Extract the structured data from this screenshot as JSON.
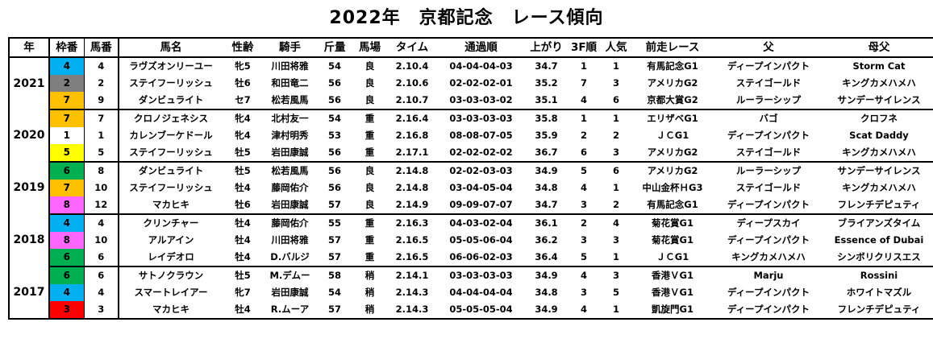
{
  "title": "2022年　京都記念　レース傾向",
  "headers": [
    "年",
    "枠番",
    "馬番",
    "馬名",
    "性齢",
    "騎手",
    "斤量",
    "馬場",
    "タイム",
    "通過順",
    "上がり",
    "3F順",
    "人気",
    "前走レース",
    "父",
    "母父"
  ],
  "waku_colors": {
    "1": "#ffffff",
    "2": "#7f7f7f",
    "3": "#ff0000",
    "4": "#00b0f0",
    "5": "#ffff00",
    "6": "#00b050",
    "7": "#ffc000",
    "8": "#ff66ff"
  },
  "groups": [
    {
      "year": "2021",
      "rows": [
        {
          "waku": "4",
          "umaban": "4",
          "horse": "ラヴズオンリーユー",
          "sexage": "牝5",
          "jockey": "川田将雅",
          "weight": "54",
          "track": "良",
          "time": "2.10.4",
          "passing": "04-04-04-03",
          "agari": "34.7",
          "f3": "1",
          "pop": "1",
          "prev": "有馬記念G1",
          "sire": "ディープインパクト",
          "damsire": "Storm Cat"
        },
        {
          "waku": "2",
          "umaban": "2",
          "horse": "ステイフーリッシュ",
          "sexage": "牡6",
          "jockey": "和田竜二",
          "weight": "56",
          "track": "良",
          "time": "2.10.6",
          "passing": "02-02-02-01",
          "agari": "35.2",
          "f3": "7",
          "pop": "3",
          "prev": "アメリカG2",
          "sire": "ステイゴールド",
          "damsire": "キングカメハメハ"
        },
        {
          "waku": "7",
          "umaban": "9",
          "horse": "ダンビュライト",
          "sexage": "セ7",
          "jockey": "松若風馬",
          "weight": "56",
          "track": "良",
          "time": "2.10.7",
          "passing": "03-03-03-02",
          "agari": "35.1",
          "f3": "4",
          "pop": "6",
          "prev": "京都大賞G2",
          "sire": "ルーラーシップ",
          "damsire": "サンデーサイレンス"
        }
      ]
    },
    {
      "year": "2020",
      "rows": [
        {
          "waku": "7",
          "umaban": "7",
          "horse": "クロノジェネシス",
          "sexage": "牝4",
          "jockey": "北村友一",
          "weight": "54",
          "track": "重",
          "time": "2.16.4",
          "passing": "03-03-03-03",
          "agari": "35.8",
          "f3": "1",
          "pop": "1",
          "prev": "エリザベG1",
          "sire": "バゴ",
          "damsire": "クロフネ"
        },
        {
          "waku": "1",
          "umaban": "1",
          "horse": "カレンブーケドール",
          "sexage": "牝4",
          "jockey": "津村明秀",
          "weight": "53",
          "track": "重",
          "time": "2.16.8",
          "passing": "08-08-07-05",
          "agari": "35.9",
          "f3": "2",
          "pop": "2",
          "prev": "ＪＣG1",
          "sire": "ディープインパクト",
          "damsire": "Scat Daddy"
        },
        {
          "waku": "5",
          "umaban": "5",
          "horse": "ステイフーリッシュ",
          "sexage": "牡5",
          "jockey": "岩田康誠",
          "weight": "56",
          "track": "重",
          "time": "2.17.1",
          "passing": "02-02-02-02",
          "agari": "36.7",
          "f3": "6",
          "pop": "3",
          "prev": "アメリカG2",
          "sire": "ステイゴールド",
          "damsire": "キングカメハメハ"
        }
      ]
    },
    {
      "year": "2019",
      "rows": [
        {
          "waku": "6",
          "umaban": "8",
          "horse": "ダンビュライト",
          "sexage": "牡5",
          "jockey": "松若風馬",
          "weight": "56",
          "track": "良",
          "time": "2.14.8",
          "passing": "02-02-03-03",
          "agari": "34.9",
          "f3": "5",
          "pop": "6",
          "prev": "アメリカG2",
          "sire": "ルーラーシップ",
          "damsire": "サンデーサイレンス"
        },
        {
          "waku": "7",
          "umaban": "10",
          "horse": "ステイフーリッシュ",
          "sexage": "牡4",
          "jockey": "藤岡佑介",
          "weight": "56",
          "track": "良",
          "time": "2.14.8",
          "passing": "03-04-05-04",
          "agari": "34.8",
          "f3": "4",
          "pop": "1",
          "prev": "中山金杯ＨG3",
          "sire": "ステイゴールド",
          "damsire": "キングカメハメハ"
        },
        {
          "waku": "8",
          "umaban": "12",
          "horse": "マカヒキ",
          "sexage": "牡6",
          "jockey": "岩田康誠",
          "weight": "57",
          "track": "良",
          "time": "2.14.9",
          "passing": "09-09-07-07",
          "agari": "34.7",
          "f3": "3",
          "pop": "2",
          "prev": "有馬記念G1",
          "sire": "ディープインパクト",
          "damsire": "フレンチデピュティ"
        }
      ]
    },
    {
      "year": "2018",
      "rows": [
        {
          "waku": "4",
          "umaban": "4",
          "horse": "クリンチャー",
          "sexage": "牡4",
          "jockey": "藤岡佑介",
          "weight": "55",
          "track": "重",
          "time": "2.16.3",
          "passing": "04-03-02-04",
          "agari": "36.1",
          "f3": "2",
          "pop": "4",
          "prev": "菊花賞G1",
          "sire": "ディープスカイ",
          "damsire": "ブライアンズタイム"
        },
        {
          "waku": "8",
          "umaban": "10",
          "horse": "アルアイン",
          "sexage": "牡4",
          "jockey": "川田将雅",
          "weight": "57",
          "track": "重",
          "time": "2.16.5",
          "passing": "05-05-06-04",
          "agari": "36.2",
          "f3": "3",
          "pop": "3",
          "prev": "菊花賞G1",
          "sire": "ディープインパクト",
          "damsire": "Essence of Dubai"
        },
        {
          "waku": "6",
          "umaban": "6",
          "horse": "レイデオロ",
          "sexage": "牡4",
          "jockey": "D.バルジ",
          "weight": "57",
          "track": "重",
          "time": "2.16.5",
          "passing": "06-06-02-03",
          "agari": "36.4",
          "f3": "5",
          "pop": "1",
          "prev": "ＪＣG1",
          "sire": "キングカメハメハ",
          "damsire": "シンボリクリスエス"
        }
      ]
    },
    {
      "year": "2017",
      "rows": [
        {
          "waku": "6",
          "umaban": "6",
          "horse": "サトノクラウン",
          "sexage": "牡5",
          "jockey": "M.デムー",
          "weight": "58",
          "track": "稍",
          "time": "2.14.1",
          "passing": "03-03-03-03",
          "agari": "34.9",
          "f3": "4",
          "pop": "3",
          "prev": "香港ＶG1",
          "sire": "Marju",
          "damsire": "Rossini"
        },
        {
          "waku": "4",
          "umaban": "4",
          "horse": "スマートレイアー",
          "sexage": "牝7",
          "jockey": "岩田康誠",
          "weight": "54",
          "track": "稍",
          "time": "2.14.3",
          "passing": "04-04-04-04",
          "agari": "34.8",
          "f3": "3",
          "pop": "5",
          "prev": "香港ＶG1",
          "sire": "ディープインパクト",
          "damsire": "ホワイトマズル"
        },
        {
          "waku": "3",
          "umaban": "3",
          "horse": "マカヒキ",
          "sexage": "牡4",
          "jockey": "R.ムーア",
          "weight": "57",
          "track": "稍",
          "time": "2.14.3",
          "passing": "05-05-05-04",
          "agari": "34.9",
          "f3": "4",
          "pop": "1",
          "prev": "凱旋門G1",
          "sire": "ディープインパクト",
          "damsire": "フレンチデピュティ"
        }
      ]
    }
  ]
}
